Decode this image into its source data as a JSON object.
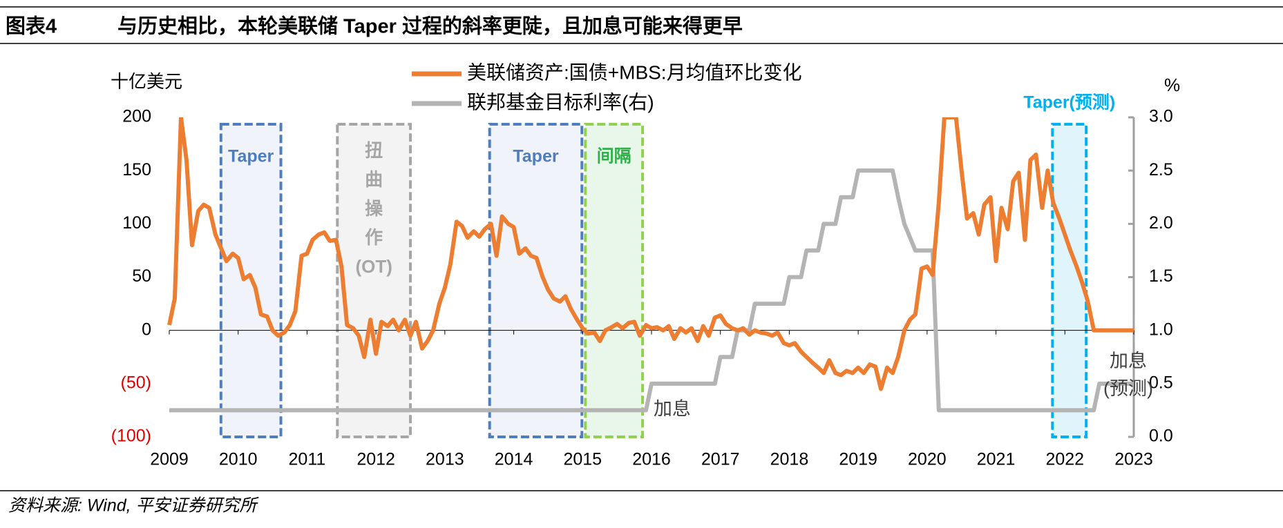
{
  "chart_data": {
    "type": "line",
    "figure_label": "图表4",
    "title": "与历史相比，本轮美联储 Taper 过程的斜率更陡，且加息可能来得更早",
    "y_label": "十亿美元",
    "y2_label": "%",
    "source": "资料来源: Wind, 平安证券研究所",
    "xlim": [
      2009,
      2023
    ],
    "xticks": [
      2009,
      2010,
      2011,
      2012,
      2013,
      2014,
      2015,
      2016,
      2017,
      2018,
      2019,
      2020,
      2021,
      2022,
      2023
    ],
    "ylim": [
      -100,
      200
    ],
    "yticks": [
      200,
      150,
      100,
      50,
      0,
      {
        "value": -50,
        "label": "(50)"
      },
      {
        "value": -100,
        "label": "(100)"
      }
    ],
    "y2lim": [
      0,
      3
    ],
    "y2ticks": [
      {
        "value": 3,
        "label": "3.0"
      },
      {
        "value": 2.5,
        "label": "2.5"
      },
      {
        "value": 2,
        "label": "2.0"
      },
      {
        "value": 1.5,
        "label": "1.5"
      },
      {
        "value": 1,
        "label": "1.0"
      },
      {
        "value": 0.5,
        "label": "0.5"
      },
      {
        "value": 0,
        "label": "0.0"
      }
    ],
    "series": [
      {
        "name": "美联储资产:国债+MBS:月均值环比变化",
        "color": "#ed7d31",
        "axis": "y",
        "x": [
          2009.0,
          2009.08,
          2009.17,
          2009.25,
          2009.33,
          2009.42,
          2009.5,
          2009.58,
          2009.67,
          2009.83,
          2009.92,
          2010.0,
          2010.08,
          2010.17,
          2010.25,
          2010.33,
          2010.42,
          2010.5,
          2010.58,
          2010.67,
          2010.75,
          2010.83,
          2010.92,
          2011.0,
          2011.08,
          2011.17,
          2011.25,
          2011.33,
          2011.42,
          2011.5,
          2011.58,
          2011.67,
          2011.75,
          2011.83,
          2011.92,
          2012.0,
          2012.08,
          2012.17,
          2012.25,
          2012.33,
          2012.42,
          2012.5,
          2012.58,
          2012.67,
          2012.75,
          2012.83,
          2012.92,
          2013.0,
          2013.08,
          2013.17,
          2013.25,
          2013.33,
          2013.42,
          2013.5,
          2013.58,
          2013.67,
          2013.75,
          2013.83,
          2013.92,
          2014.0,
          2014.08,
          2014.17,
          2014.25,
          2014.33,
          2014.42,
          2014.5,
          2014.58,
          2014.67,
          2014.75,
          2014.83,
          2014.92,
          2015.0,
          2015.08,
          2015.17,
          2015.25,
          2015.33,
          2015.42,
          2015.5,
          2015.58,
          2015.67,
          2015.75,
          2015.83,
          2015.92,
          2016.0,
          2016.08,
          2016.17,
          2016.25,
          2016.33,
          2016.42,
          2016.5,
          2016.58,
          2016.67,
          2016.75,
          2016.83,
          2016.92,
          2017.0,
          2017.08,
          2017.17,
          2017.25,
          2017.33,
          2017.42,
          2017.5,
          2017.58,
          2017.67,
          2017.75,
          2017.83,
          2017.92,
          2018.0,
          2018.08,
          2018.17,
          2018.25,
          2018.33,
          2018.42,
          2018.5,
          2018.58,
          2018.67,
          2018.75,
          2018.83,
          2018.92,
          2019.0,
          2019.08,
          2019.17,
          2019.25,
          2019.33,
          2019.42,
          2019.5,
          2019.58,
          2019.67,
          2019.75,
          2019.83,
          2019.92,
          2020.0,
          2020.08,
          2020.17,
          2020.25,
          2020.42,
          2020.5,
          2020.58,
          2020.67,
          2020.75,
          2020.83,
          2020.92,
          2021.0,
          2021.08,
          2021.17,
          2021.25,
          2021.33,
          2021.42,
          2021.5,
          2021.58,
          2021.67,
          2021.75,
          2021.83,
          2021.92,
          2022.0,
          2022.08,
          2022.17,
          2022.25,
          2022.33,
          2022.42,
          2022.5,
          2022.67,
          2022.83,
          2023.0
        ],
        "values": [
          5,
          30,
          200,
          160,
          80,
          112,
          118,
          115,
          90,
          65,
          72,
          68,
          48,
          52,
          40,
          15,
          13,
          0,
          -5,
          -2,
          5,
          18,
          70,
          72,
          85,
          90,
          92,
          84,
          85,
          60,
          5,
          2,
          -5,
          -25,
          10,
          -22,
          8,
          4,
          10,
          0,
          10,
          -5,
          8,
          -17,
          -10,
          0,
          25,
          40,
          62,
          102,
          98,
          87,
          93,
          88,
          95,
          100,
          70,
          107,
          100,
          97,
          72,
          77,
          70,
          68,
          50,
          38,
          30,
          27,
          32,
          20,
          10,
          2,
          -3,
          -2,
          -10,
          0,
          3,
          6,
          2,
          7,
          8,
          -5,
          5,
          2,
          3,
          0,
          4,
          -8,
          2,
          -2,
          2,
          -10,
          4,
          -5,
          12,
          14,
          6,
          2,
          0,
          2,
          -4,
          0,
          -2,
          -3,
          -5,
          -2,
          -12,
          -14,
          -12,
          -20,
          -25,
          -30,
          -35,
          -40,
          -28,
          -40,
          -42,
          -38,
          -40,
          -35,
          -40,
          -32,
          -34,
          -55,
          -35,
          -40,
          -25,
          0,
          10,
          15,
          58,
          60,
          52,
          120,
          200,
          200,
          150,
          105,
          110,
          90,
          118,
          125,
          65,
          115,
          95,
          140,
          148,
          85,
          160,
          165,
          115,
          150,
          120,
          105,
          90,
          75,
          60,
          45,
          28,
          0,
          0,
          0,
          0,
          0
        ]
      },
      {
        "name": "联邦基金目标利率(右)",
        "color": "#b4b4b4",
        "axis": "y2",
        "x": [
          2009,
          2015.92,
          2016.0,
          2016.92,
          2017.0,
          2017.17,
          2017.25,
          2017.42,
          2017.5,
          2017.92,
          2018.0,
          2018.17,
          2018.25,
          2018.42,
          2018.5,
          2018.67,
          2018.75,
          2018.92,
          2019.0,
          2019.5,
          2019.58,
          2019.67,
          2019.83,
          2020.08,
          2020.17,
          2022.42,
          2022.5,
          2023
        ],
        "values": [
          0.25,
          0.25,
          0.5,
          0.5,
          0.75,
          0.75,
          1.0,
          1.0,
          1.25,
          1.25,
          1.5,
          1.5,
          1.75,
          1.75,
          2.0,
          2.0,
          2.25,
          2.25,
          2.5,
          2.5,
          2.25,
          2.0,
          1.75,
          1.75,
          0.25,
          0.25,
          0.5,
          0.5
        ]
      }
    ],
    "boxes": [
      {
        "label": [
          "Taper"
        ],
        "x": [
          2009.75,
          2010.62
        ],
        "color": "#4f7ec0",
        "fill": "#eef2fa"
      },
      {
        "label": [
          "扭",
          "曲",
          "操",
          "作",
          "(OT)"
        ],
        "x": [
          2011.44,
          2012.5
        ],
        "color": "#a6a6a6",
        "fill": "#f2f2f2"
      },
      {
        "label": [
          "Taper"
        ],
        "x": [
          2013.65,
          2014.99
        ],
        "color": "#4f7ec0",
        "fill": "#eef2fa"
      },
      {
        "label": [
          "间隔"
        ],
        "x": [
          2015.04,
          2015.87
        ],
        "color": "#92d050",
        "fill": "#e6f6e8",
        "label_color": "#2fb04a"
      },
      {
        "label": [
          "Taper(预测)"
        ],
        "x": [
          2021.82,
          2022.31
        ],
        "color": "#00b0f0",
        "fill": "#dcf3fb",
        "label_color": "#00b0f0",
        "label_above": true
      }
    ],
    "annotations": [
      {
        "text": [
          "加息"
        ],
        "x": 2016.3,
        "y2": 0.25
      },
      {
        "text": [
          "加息",
          "(预测)"
        ],
        "x": 2022.92,
        "y2": 0.7
      }
    ]
  }
}
